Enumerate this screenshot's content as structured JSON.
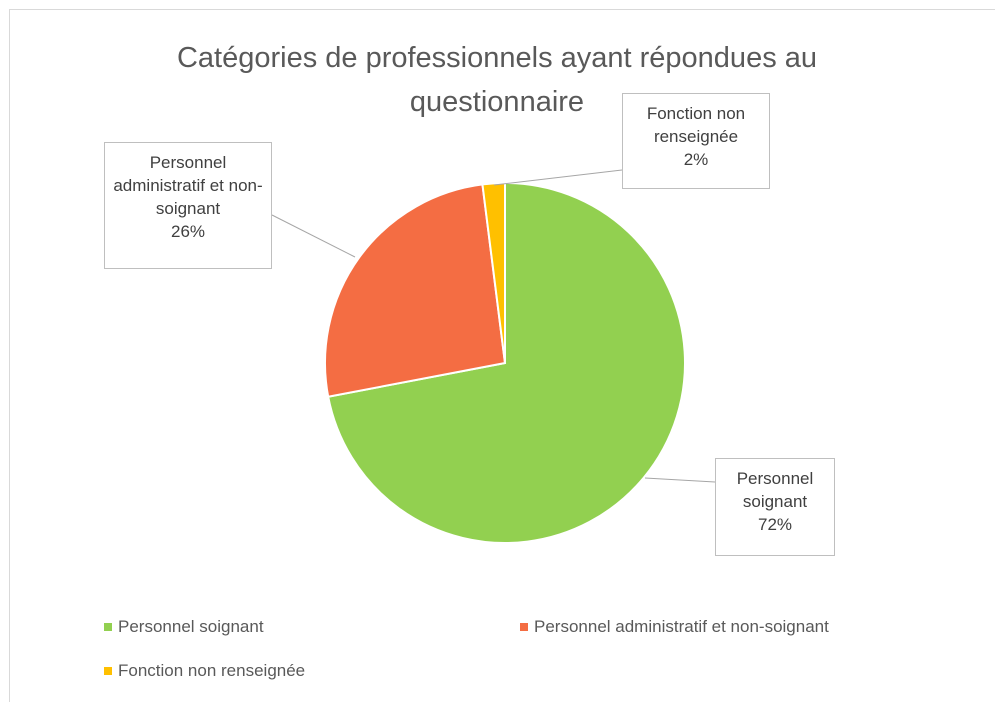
{
  "chart_data": {
    "type": "pie",
    "title": "Catégories de professionnels ayant répondues au questionnaire",
    "categories": [
      "Personnel soignant",
      "Personnel administratif et non-soignant",
      "Fonction non renseignée"
    ],
    "values": [
      72,
      26,
      2
    ],
    "value_labels": [
      "72%",
      "26%",
      "2%"
    ],
    "colors": [
      "#92d050",
      "#f46d43",
      "#ffc000"
    ],
    "legend": "bottom"
  }
}
